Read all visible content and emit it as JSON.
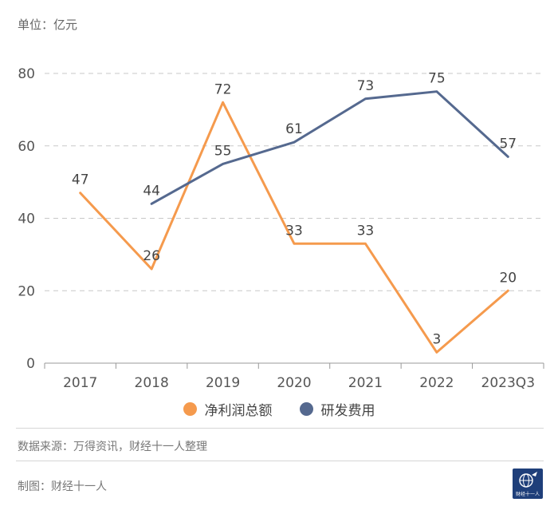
{
  "unit_label": "单位：亿元",
  "source": "数据来源：万得资讯，财经十一人整理",
  "maker": "制图：财经十一人",
  "logo_text": "财经十一人",
  "colors": {
    "profit": "#F59A4D",
    "rnd": "#55698F",
    "grid": "#c8c8c8",
    "axis": "#999999"
  },
  "chart_data": {
    "type": "line",
    "categories": [
      "2017",
      "2018",
      "2019",
      "2020",
      "2021",
      "2022",
      "2023Q3"
    ],
    "ylim": [
      0,
      80
    ],
    "yticks": [
      0,
      20,
      40,
      60,
      80
    ],
    "grid": true,
    "legend_position": "bottom",
    "series": [
      {
        "name": "净利润总额",
        "color": "#F59A4D",
        "values": [
          47,
          26,
          72,
          33,
          33,
          3,
          20
        ]
      },
      {
        "name": "研发费用",
        "color": "#55698F",
        "values": [
          null,
          44,
          55,
          61,
          73,
          75,
          57
        ]
      }
    ]
  }
}
